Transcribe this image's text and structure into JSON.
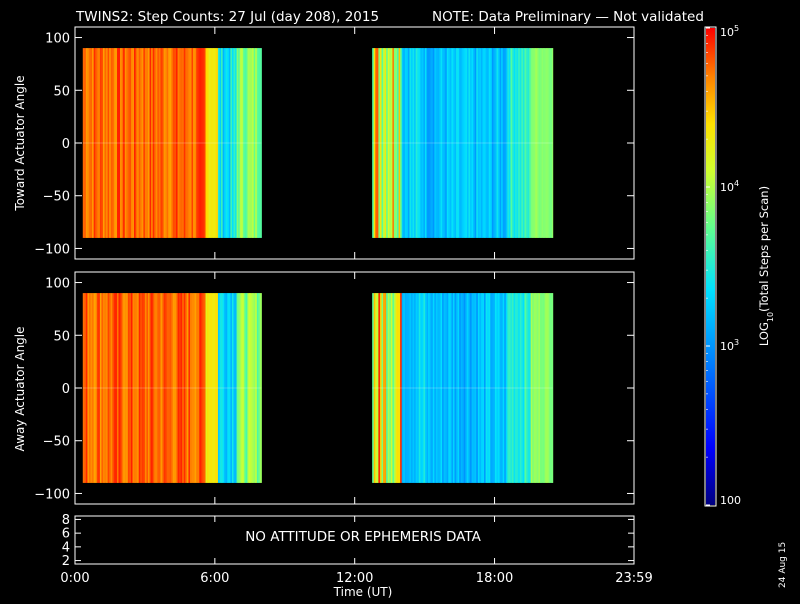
{
  "header": {
    "title": "TWINS2: Step Counts: 27 Jul (day 208), 2015",
    "note": "NOTE: Data Preliminary — Not validated",
    "note_color": "#ff2020"
  },
  "footer": {
    "date_stamp": "24 Aug 15"
  },
  "chart_data": [
    {
      "type": "heatmap",
      "name": "toward",
      "ylabel": "Toward Actuator Angle",
      "xlabel": "",
      "xlim": [
        "0:00",
        "23:59"
      ],
      "ylim": [
        -110,
        110
      ],
      "yticks": [
        "100",
        "50",
        "0",
        "−50",
        "−100"
      ],
      "ytick_values": [
        100,
        50,
        0,
        -50,
        -100
      ],
      "data_extent": {
        "angle_min": -90,
        "angle_max": 90
      },
      "segments": [
        {
          "start": "0:20",
          "end": "8:00"
        },
        {
          "start": "12:45",
          "end": "20:30"
        }
      ],
      "scale": "log",
      "value_range": [
        100,
        100000
      ]
    },
    {
      "type": "heatmap",
      "name": "away",
      "ylabel": "Away Actuator Angle",
      "xlabel": "",
      "xlim": [
        "0:00",
        "23:59"
      ],
      "ylim": [
        -110,
        110
      ],
      "yticks": [
        "100",
        "50",
        "0",
        "−50",
        "−100"
      ],
      "ytick_values": [
        100,
        50,
        0,
        -50,
        -100
      ],
      "data_extent": {
        "angle_min": -90,
        "angle_max": 90
      },
      "segments": [
        {
          "start": "0:20",
          "end": "8:00"
        },
        {
          "start": "12:45",
          "end": "20:30"
        }
      ],
      "scale": "log",
      "value_range": [
        100,
        100000
      ]
    },
    {
      "type": "line",
      "name": "ephemeris",
      "message": "NO ATTITUDE OR EPHEMERIS DATA",
      "yticks": [
        "8",
        "6",
        "4",
        "2"
      ],
      "ytick_values": [
        8,
        6,
        4,
        2
      ],
      "ylim": [
        1.5,
        8.5
      ],
      "xlabel": "Time (UT)",
      "xticks": [
        "0:00",
        "6:00",
        "12:00",
        "18:00",
        "23:59"
      ],
      "xtick_hours": [
        0,
        6,
        12,
        18,
        23.983
      ]
    }
  ],
  "colorbar": {
    "label": "LOG",
    "label_sub": "10",
    "label_rest": "(Total Steps per Scan)",
    "ticks": [
      {
        "base": "10",
        "exp": "5",
        "value": 100000
      },
      {
        "base": "10",
        "exp": "4",
        "value": 10000
      },
      {
        "base": "10",
        "exp": "3",
        "value": 1000
      },
      {
        "base": "100",
        "exp": "",
        "value": 100
      }
    ],
    "range": [
      100,
      100000
    ]
  }
}
